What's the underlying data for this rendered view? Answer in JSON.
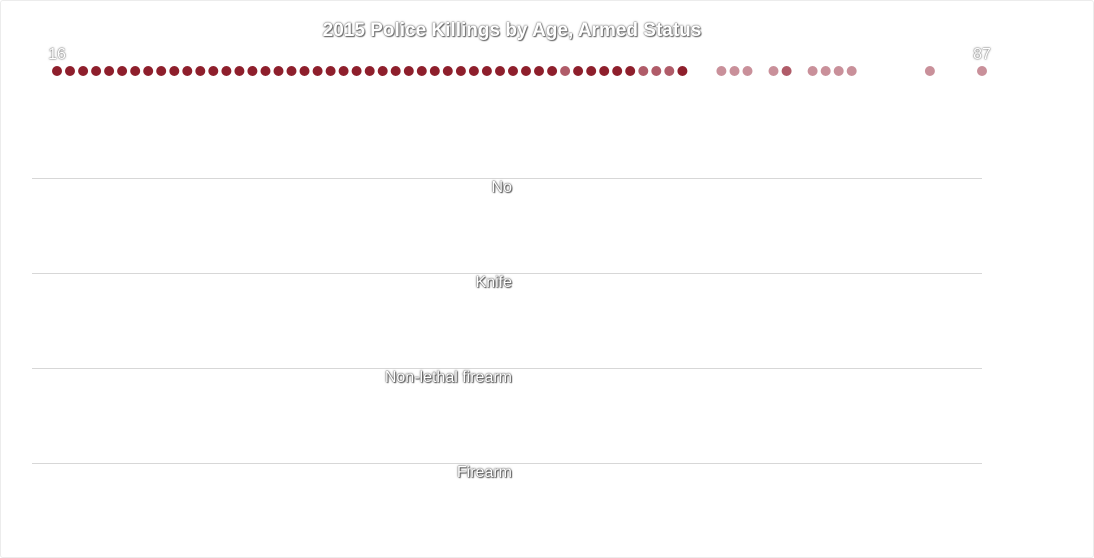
{
  "chart_data": {
    "type": "scatter",
    "title": "2015 Police Killings by Age, Armed Status",
    "x_range": [
      16,
      87
    ],
    "x_min_label": "16",
    "x_max_label": "87",
    "categories": [
      "No",
      "Knife",
      "Non-lethal firearm",
      "Firearm"
    ],
    "colors": {
      "dark": "#8e1f2c",
      "medium": "#b05c69",
      "light": "#c9909a",
      "grid": "#d7d7d7"
    },
    "age_dots": [
      {
        "age": 16,
        "shade": "dark"
      },
      {
        "age": 17,
        "shade": "dark"
      },
      {
        "age": 18,
        "shade": "dark"
      },
      {
        "age": 19,
        "shade": "dark"
      },
      {
        "age": 20,
        "shade": "dark"
      },
      {
        "age": 21,
        "shade": "dark"
      },
      {
        "age": 22,
        "shade": "dark"
      },
      {
        "age": 23,
        "shade": "dark"
      },
      {
        "age": 24,
        "shade": "dark"
      },
      {
        "age": 25,
        "shade": "dark"
      },
      {
        "age": 26,
        "shade": "dark"
      },
      {
        "age": 27,
        "shade": "dark"
      },
      {
        "age": 28,
        "shade": "dark"
      },
      {
        "age": 29,
        "shade": "dark"
      },
      {
        "age": 30,
        "shade": "dark"
      },
      {
        "age": 31,
        "shade": "dark"
      },
      {
        "age": 32,
        "shade": "dark"
      },
      {
        "age": 33,
        "shade": "dark"
      },
      {
        "age": 34,
        "shade": "dark"
      },
      {
        "age": 35,
        "shade": "dark"
      },
      {
        "age": 36,
        "shade": "dark"
      },
      {
        "age": 37,
        "shade": "dark"
      },
      {
        "age": 38,
        "shade": "dark"
      },
      {
        "age": 39,
        "shade": "dark"
      },
      {
        "age": 40,
        "shade": "dark"
      },
      {
        "age": 41,
        "shade": "dark"
      },
      {
        "age": 42,
        "shade": "dark"
      },
      {
        "age": 43,
        "shade": "dark"
      },
      {
        "age": 44,
        "shade": "dark"
      },
      {
        "age": 45,
        "shade": "dark"
      },
      {
        "age": 46,
        "shade": "dark"
      },
      {
        "age": 47,
        "shade": "dark"
      },
      {
        "age": 48,
        "shade": "dark"
      },
      {
        "age": 49,
        "shade": "dark"
      },
      {
        "age": 50,
        "shade": "dark"
      },
      {
        "age": 51,
        "shade": "dark"
      },
      {
        "age": 52,
        "shade": "dark"
      },
      {
        "age": 53,
        "shade": "dark"
      },
      {
        "age": 54,
        "shade": "dark"
      },
      {
        "age": 55,
        "shade": "medium"
      },
      {
        "age": 56,
        "shade": "dark"
      },
      {
        "age": 57,
        "shade": "dark"
      },
      {
        "age": 58,
        "shade": "dark"
      },
      {
        "age": 59,
        "shade": "dark"
      },
      {
        "age": 60,
        "shade": "dark"
      },
      {
        "age": 61,
        "shade": "medium"
      },
      {
        "age": 62,
        "shade": "medium"
      },
      {
        "age": 63,
        "shade": "medium"
      },
      {
        "age": 64,
        "shade": "dark"
      },
      {
        "age": 67,
        "shade": "light"
      },
      {
        "age": 68,
        "shade": "light"
      },
      {
        "age": 69,
        "shade": "light"
      },
      {
        "age": 71,
        "shade": "light"
      },
      {
        "age": 72,
        "shade": "medium"
      },
      {
        "age": 74,
        "shade": "light"
      },
      {
        "age": 75,
        "shade": "light"
      },
      {
        "age": 76,
        "shade": "light"
      },
      {
        "age": 77,
        "shade": "light"
      },
      {
        "age": 83,
        "shade": "light"
      },
      {
        "age": 87,
        "shade": "light"
      }
    ]
  }
}
